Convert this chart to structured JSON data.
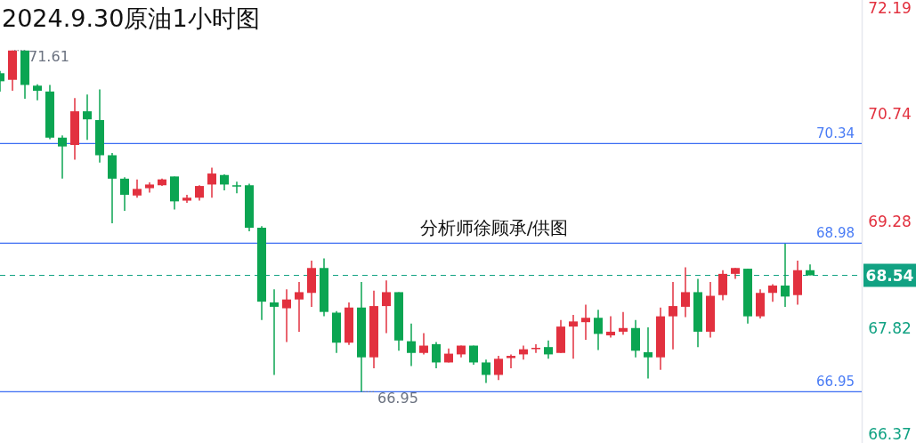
{
  "chart_data": {
    "type": "candlestick",
    "title": "2024.9.30原油1小时图",
    "categories": [
      null,
      null,
      null,
      null,
      null,
      null,
      null,
      null,
      null,
      null,
      null,
      null,
      null,
      null,
      null,
      null,
      null,
      null,
      null,
      null,
      null,
      null,
      null,
      null,
      null,
      null,
      null,
      null,
      null,
      null,
      null,
      null,
      null,
      null,
      null,
      null,
      null,
      null,
      null,
      null,
      null,
      null,
      null,
      null,
      null,
      null,
      null,
      null,
      null,
      null,
      null,
      null,
      null,
      null,
      null,
      null,
      null,
      null,
      null,
      null,
      null,
      null,
      null,
      null,
      null,
      null
    ],
    "ohlc": [
      [
        71.3,
        71.33,
        71.05,
        71.19
      ],
      [
        71.21,
        71.61,
        71.06,
        71.61
      ],
      [
        71.61,
        71.61,
        70.95,
        71.14
      ],
      [
        71.13,
        71.15,
        70.93,
        71.06
      ],
      [
        71.05,
        71.14,
        70.4,
        70.42
      ],
      [
        70.42,
        70.45,
        69.86,
        70.3
      ],
      [
        70.32,
        70.96,
        70.12,
        70.78
      ],
      [
        70.78,
        71.01,
        70.39,
        70.67
      ],
      [
        70.66,
        71.08,
        70.08,
        70.18
      ],
      [
        70.18,
        70.21,
        69.25,
        69.86
      ],
      [
        69.86,
        69.88,
        69.42,
        69.64
      ],
      [
        69.63,
        69.85,
        69.6,
        69.72
      ],
      [
        69.73,
        69.81,
        69.67,
        69.78
      ],
      [
        69.77,
        69.86,
        69.76,
        69.85
      ],
      [
        69.89,
        69.89,
        69.44,
        69.55
      ],
      [
        69.56,
        69.64,
        69.53,
        69.6
      ],
      [
        69.6,
        69.77,
        69.56,
        69.76
      ],
      [
        69.78,
        70.01,
        69.6,
        69.93
      ],
      [
        69.91,
        69.92,
        69.7,
        69.78
      ],
      [
        69.77,
        69.82,
        69.66,
        69.76
      ],
      [
        69.77,
        69.79,
        69.14,
        69.19
      ],
      [
        69.19,
        69.21,
        67.93,
        68.18
      ],
      [
        68.17,
        68.35,
        67.18,
        68.11
      ],
      [
        68.09,
        68.35,
        67.63,
        68.21
      ],
      [
        68.21,
        68.45,
        67.77,
        68.31
      ],
      [
        68.3,
        68.74,
        68.11,
        68.64
      ],
      [
        68.64,
        68.77,
        67.98,
        68.04
      ],
      [
        68.03,
        68.05,
        67.48,
        67.62
      ],
      [
        67.62,
        68.17,
        67.59,
        68.1
      ],
      [
        68.1,
        68.45,
        66.95,
        67.42
      ],
      [
        67.42,
        68.33,
        67.27,
        68.12
      ],
      [
        68.12,
        68.47,
        67.75,
        68.31
      ],
      [
        68.31,
        68.31,
        67.51,
        67.65
      ],
      [
        67.64,
        67.88,
        67.3,
        67.48
      ],
      [
        67.48,
        67.75,
        67.46,
        67.58
      ],
      [
        67.6,
        67.63,
        67.27,
        67.35
      ],
      [
        67.35,
        67.54,
        67.35,
        67.47
      ],
      [
        67.46,
        67.58,
        67.42,
        67.58
      ],
      [
        67.58,
        67.58,
        67.32,
        67.35
      ],
      [
        67.35,
        67.39,
        67.07,
        67.18
      ],
      [
        67.18,
        67.44,
        67.11,
        67.4
      ],
      [
        67.41,
        67.46,
        67.27,
        67.44
      ],
      [
        67.46,
        67.58,
        67.39,
        67.53
      ],
      [
        67.54,
        67.6,
        67.48,
        67.55
      ],
      [
        67.56,
        67.65,
        67.4,
        67.46
      ],
      [
        67.48,
        67.93,
        67.48,
        67.84
      ],
      [
        67.84,
        68.0,
        67.4,
        67.91
      ],
      [
        67.9,
        68.14,
        67.66,
        67.96
      ],
      [
        67.96,
        68.07,
        67.52,
        67.74
      ],
      [
        67.72,
        67.98,
        67.69,
        67.77
      ],
      [
        67.77,
        68.04,
        67.73,
        67.82
      ],
      [
        67.82,
        67.93,
        67.42,
        67.51
      ],
      [
        67.49,
        67.83,
        67.13,
        67.42
      ],
      [
        67.42,
        68.1,
        67.25,
        67.98
      ],
      [
        67.98,
        68.45,
        67.53,
        68.12
      ],
      [
        68.11,
        68.65,
        67.97,
        68.31
      ],
      [
        68.31,
        68.49,
        67.56,
        67.77
      ],
      [
        67.77,
        68.45,
        67.69,
        68.26
      ],
      [
        68.27,
        68.61,
        68.2,
        68.56
      ],
      [
        68.56,
        68.64,
        68.49,
        68.64
      ],
      [
        68.63,
        68.63,
        67.88,
        67.98
      ],
      [
        67.98,
        68.35,
        67.95,
        68.3
      ],
      [
        68.3,
        68.42,
        68.18,
        68.4
      ],
      [
        68.4,
        68.97,
        68.11,
        68.25
      ],
      [
        68.27,
        68.74,
        68.14,
        68.61
      ],
      [
        68.61,
        68.69,
        68.54,
        68.54
      ]
    ],
    "ylim": [
      66.25,
      72.3
    ],
    "yticks": [
      72.19,
      70.74,
      69.28,
      67.82,
      66.37
    ],
    "ref_lines": [
      {
        "axis": "y",
        "value": 70.34,
        "label": "70.34",
        "color": "#3b6cf2"
      },
      {
        "axis": "y",
        "value": 68.98,
        "label": "68.98",
        "color": "#3b6cf2"
      },
      {
        "axis": "y",
        "value": 66.95,
        "label": "66.95",
        "color": "#3b6cf2"
      },
      {
        "axis": "y",
        "value": 68.54,
        "label": "68.54",
        "color": "#12a283",
        "line_style": "dashed"
      }
    ],
    "annotations": [
      "分析师徐顾承/供图",
      "71.61",
      "66.95"
    ]
  }
}
